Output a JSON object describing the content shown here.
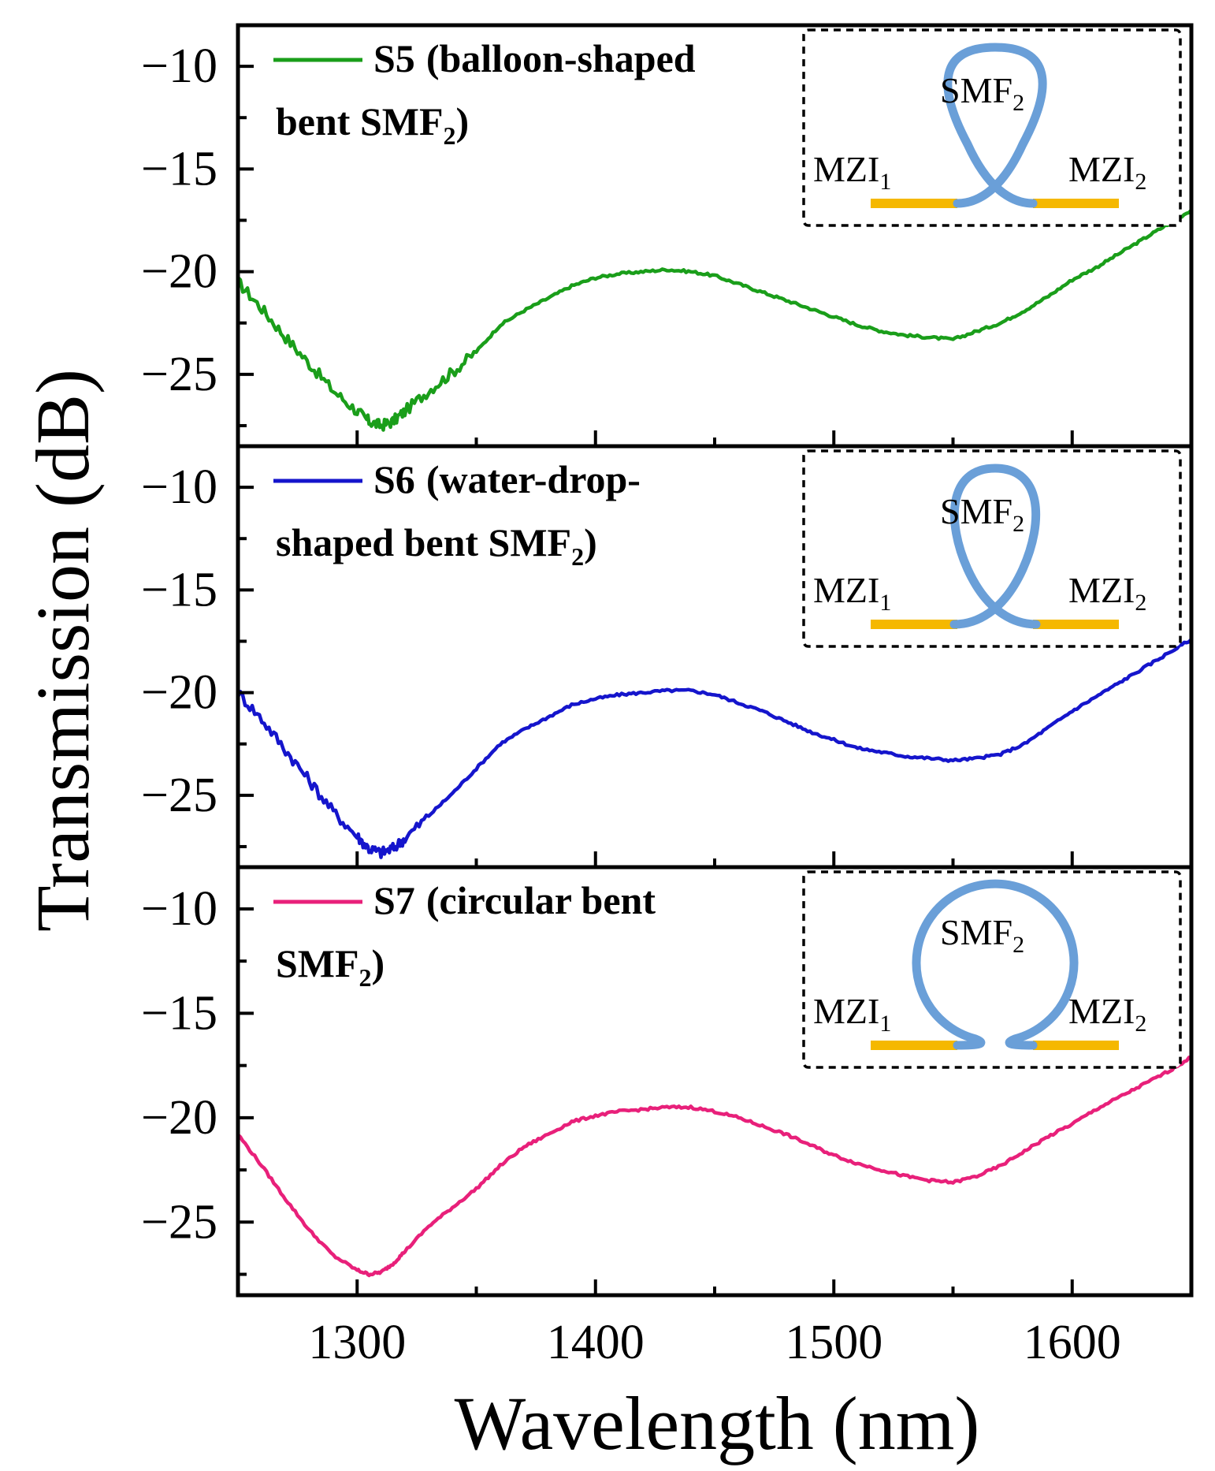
{
  "figure": {
    "xlabel": "Wavelength (nm)",
    "ylabel": "Transmission (dB)"
  },
  "colors": {
    "s5": "#1a9e1a",
    "s6": "#1515cc",
    "s7": "#e8207a",
    "fiber": "#6a9fd8",
    "segment": "#f5b800"
  },
  "chart_data": [
    {
      "type": "line",
      "panel": "top",
      "series": [
        {
          "name": "S5",
          "legend_bold": "S5",
          "legend_rest_1": "(balloon-shaped",
          "legend_rest_2": "bent SMF",
          "legend_sub": "2",
          "legend_close": ")",
          "color": "#1a9e1a",
          "x": [
            1250,
            1260,
            1270,
            1280,
            1290,
            1300,
            1305,
            1310,
            1315,
            1320,
            1330,
            1340,
            1350,
            1360,
            1370,
            1380,
            1390,
            1400,
            1410,
            1420,
            1430,
            1440,
            1450,
            1460,
            1470,
            1480,
            1490,
            1500,
            1510,
            1520,
            1530,
            1540,
            1550,
            1560,
            1570,
            1580,
            1590,
            1600,
            1610,
            1620,
            1630,
            1640,
            1650
          ],
          "y": [
            -20.5,
            -21.8,
            -23.2,
            -24.5,
            -25.8,
            -26.8,
            -27.3,
            -27.5,
            -27.3,
            -26.8,
            -25.8,
            -24.9,
            -23.9,
            -22.6,
            -21.9,
            -21.3,
            -20.7,
            -20.3,
            -20.1,
            -20.0,
            -19.9,
            -20.0,
            -20.2,
            -20.6,
            -21.0,
            -21.4,
            -21.8,
            -22.2,
            -22.6,
            -22.9,
            -23.1,
            -23.2,
            -23.3,
            -22.9,
            -22.5,
            -21.9,
            -21.2,
            -20.4,
            -19.8,
            -19.1,
            -18.4,
            -17.7,
            -17.0
          ],
          "noise_below": 1350
        }
      ],
      "xlim": [
        1250,
        1650
      ],
      "ylim": [
        -28.5,
        -8.0
      ],
      "yticks": [
        -10,
        -15,
        -20,
        -25
      ],
      "ytick_labels": [
        "−10",
        "−15",
        "−20",
        "−25"
      ],
      "xticks": [
        1300,
        1400,
        1500,
        1600
      ],
      "inset": {
        "loop_label": "SMF",
        "loop_sub": "2",
        "left_label": "MZI",
        "left_sub": "1",
        "right_label": "MZI",
        "right_sub": "2",
        "loop_shape": "balloon"
      }
    },
    {
      "type": "line",
      "panel": "middle",
      "series": [
        {
          "name": "S6",
          "legend_bold": "S6",
          "legend_rest_1": "(water-drop-",
          "legend_rest_2": "shaped bent SMF",
          "legend_sub": "2",
          "legend_close": ")",
          "color": "#1515cc",
          "x": [
            1250,
            1260,
            1270,
            1280,
            1290,
            1300,
            1305,
            1310,
            1315,
            1320,
            1330,
            1340,
            1350,
            1360,
            1370,
            1380,
            1390,
            1400,
            1410,
            1420,
            1430,
            1440,
            1450,
            1460,
            1470,
            1480,
            1490,
            1500,
            1510,
            1520,
            1530,
            1540,
            1550,
            1560,
            1570,
            1580,
            1590,
            1600,
            1610,
            1620,
            1630,
            1640,
            1650
          ],
          "y": [
            -20.0,
            -21.3,
            -22.8,
            -24.3,
            -25.8,
            -27.0,
            -27.6,
            -27.8,
            -27.6,
            -27.1,
            -26.0,
            -24.9,
            -23.7,
            -22.5,
            -21.8,
            -21.2,
            -20.6,
            -20.3,
            -20.1,
            -20.0,
            -19.9,
            -19.9,
            -20.1,
            -20.5,
            -20.9,
            -21.4,
            -21.9,
            -22.3,
            -22.7,
            -22.9,
            -23.1,
            -23.2,
            -23.3,
            -23.2,
            -23.0,
            -22.5,
            -21.7,
            -20.9,
            -20.2,
            -19.5,
            -18.8,
            -18.1,
            -17.4
          ],
          "noise_below": 1330
        }
      ],
      "xlim": [
        1250,
        1650
      ],
      "ylim": [
        -28.5,
        -8.0
      ],
      "yticks": [
        -10,
        -15,
        -20,
        -25
      ],
      "ytick_labels": [
        "−10",
        "−15",
        "−20",
        "−25"
      ],
      "xticks": [
        1300,
        1400,
        1500,
        1600
      ],
      "inset": {
        "loop_label": "SMF",
        "loop_sub": "2",
        "left_label": "MZI",
        "left_sub": "1",
        "right_label": "MZI",
        "right_sub": "2",
        "loop_shape": "drop"
      }
    },
    {
      "type": "line",
      "panel": "bottom",
      "series": [
        {
          "name": "S7",
          "legend_bold": "S7",
          "legend_rest_1": "(circular bent",
          "legend_rest_2": "SMF",
          "legend_sub": "2",
          "legend_close": ")",
          "color": "#e8207a",
          "x": [
            1250,
            1260,
            1270,
            1280,
            1290,
            1300,
            1305,
            1310,
            1315,
            1320,
            1330,
            1340,
            1350,
            1360,
            1370,
            1380,
            1390,
            1400,
            1410,
            1420,
            1430,
            1440,
            1450,
            1460,
            1470,
            1480,
            1490,
            1500,
            1510,
            1520,
            1530,
            1540,
            1550,
            1560,
            1570,
            1580,
            1590,
            1600,
            1610,
            1620,
            1630,
            1640,
            1650
          ],
          "y": [
            -20.8,
            -22.3,
            -23.9,
            -25.4,
            -26.6,
            -27.3,
            -27.5,
            -27.4,
            -27.0,
            -26.4,
            -25.2,
            -24.3,
            -23.4,
            -22.3,
            -21.4,
            -20.8,
            -20.2,
            -19.9,
            -19.7,
            -19.6,
            -19.5,
            -19.5,
            -19.7,
            -20.0,
            -20.4,
            -20.8,
            -21.3,
            -21.8,
            -22.2,
            -22.5,
            -22.8,
            -23.0,
            -23.1,
            -22.8,
            -22.3,
            -21.6,
            -20.9,
            -20.3,
            -19.6,
            -19.0,
            -18.4,
            -17.8,
            -17.1
          ],
          "noise_below": 1250
        }
      ],
      "xlim": [
        1250,
        1650
      ],
      "ylim": [
        -28.5,
        -8.0
      ],
      "yticks": [
        -10,
        -15,
        -20,
        -25
      ],
      "ytick_labels": [
        "−10",
        "−15",
        "−20",
        "−25"
      ],
      "xticks": [
        1300,
        1400,
        1500,
        1600
      ],
      "xtick_labels": [
        "1300",
        "1400",
        "1500",
        "1600"
      ],
      "inset": {
        "loop_label": "SMF",
        "loop_sub": "2",
        "left_label": "MZI",
        "left_sub": "1",
        "right_label": "MZI",
        "right_sub": "2",
        "loop_shape": "circle"
      }
    }
  ]
}
